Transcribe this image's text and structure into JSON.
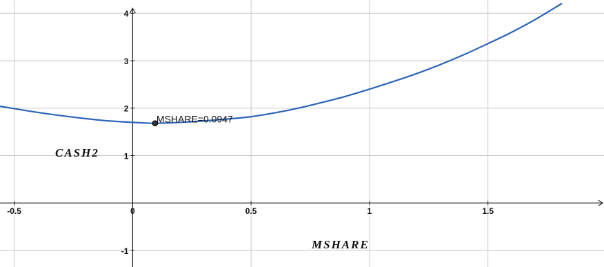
{
  "chart_data": {
    "type": "line",
    "xlabel": "MSHARE",
    "ylabel": "CASH2",
    "xlim": [
      -0.56,
      1.99
    ],
    "ylim": [
      -1.35,
      4.28
    ],
    "grid": true,
    "x_ticks": [
      -0.5,
      0,
      0.5,
      1,
      1.5
    ],
    "y_ticks": [
      -1,
      1,
      2,
      3,
      4
    ],
    "x_tick_labels": [
      "-0.5",
      "0",
      "0.5",
      "1",
      "1.5"
    ],
    "y_tick_labels": [
      "-1",
      "1",
      "2",
      "3",
      "4"
    ],
    "series": [
      {
        "color": "#2b63b8",
        "x": [
          -0.56,
          -0.5,
          -0.4,
          -0.3,
          -0.2,
          -0.1,
          0,
          0.0947,
          0.2,
          0.3,
          0.4,
          0.5,
          0.6,
          0.7,
          0.8,
          0.9,
          1.0,
          1.1,
          1.2,
          1.3,
          1.4,
          1.5,
          1.6,
          1.7,
          1.81
        ],
        "y": [
          2.04,
          1.99,
          1.91,
          1.84,
          1.78,
          1.73,
          1.7,
          1.68,
          1.7,
          1.73,
          1.77,
          1.82,
          1.9,
          2.0,
          2.12,
          2.25,
          2.4,
          2.56,
          2.73,
          2.92,
          3.13,
          3.36,
          3.6,
          3.87,
          4.2
        ]
      }
    ],
    "point": {
      "x": 0.0947,
      "y": 1.68,
      "label": "MSHARE=0.0947"
    }
  }
}
